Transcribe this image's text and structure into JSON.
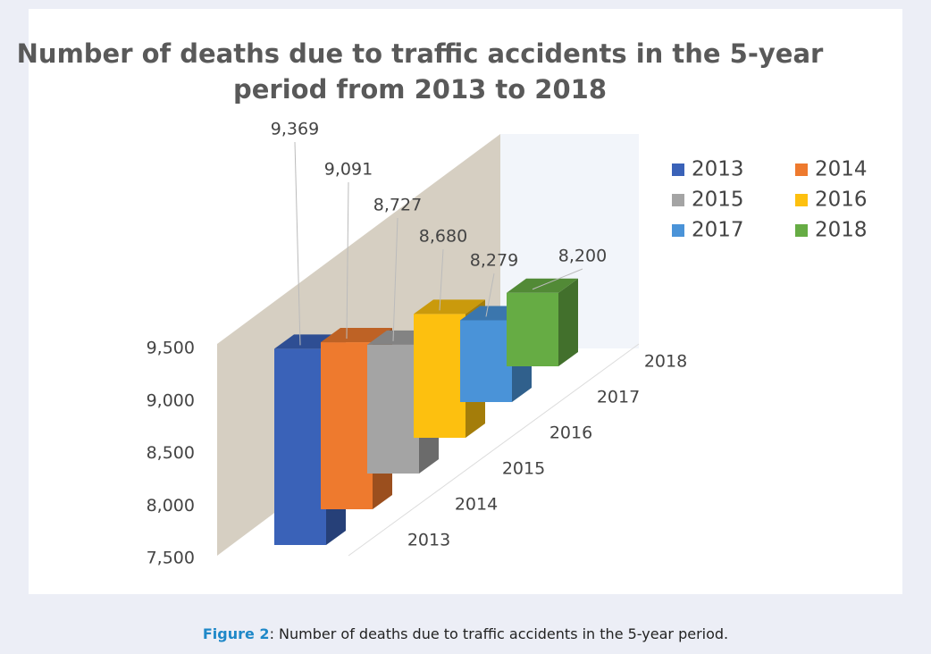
{
  "chart_data": {
    "type": "bar3d",
    "title": [
      "Number of deaths due to traffic accidents in the 5-year",
      "period from 2013 to 2018"
    ],
    "categories": [
      "2013",
      "2014",
      "2015",
      "2016",
      "2017",
      "2018"
    ],
    "values": [
      9369,
      9091,
      8727,
      8680,
      8279,
      8200
    ],
    "value_labels": [
      "9,369",
      "9,091",
      "8,727",
      "8,680",
      "8,279",
      "8,200"
    ],
    "colors": [
      "#3a62b8",
      "#ee7a2e",
      "#a4a4a4",
      "#fdc00f",
      "#4a93d8",
      "#66ac44"
    ],
    "ylim": [
      7500,
      9500
    ],
    "yticks": [
      {
        "value": 7500,
        "label": "7,500"
      },
      {
        "value": 8000,
        "label": "8,000"
      },
      {
        "value": 8500,
        "label": "8,500"
      },
      {
        "value": 9000,
        "label": "9,000"
      },
      {
        "value": 9500,
        "label": "9,500"
      }
    ],
    "legend": "right"
  },
  "caption": {
    "label": "Figure 2",
    "text": ": Number of deaths due to traffic accidents in the 5-year period."
  }
}
